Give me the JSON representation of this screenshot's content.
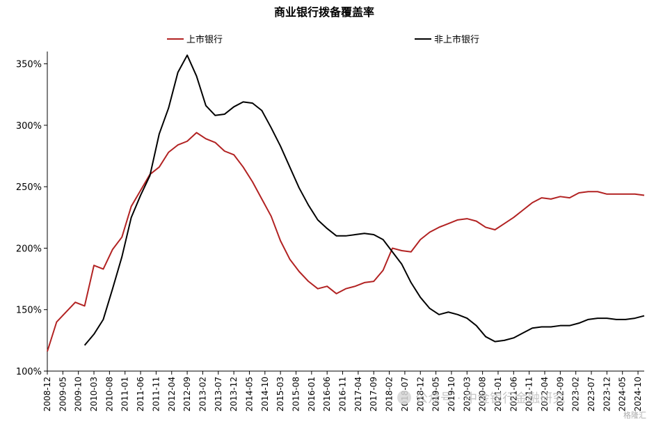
{
  "chart_data": {
    "type": "line",
    "title": "商业银行拨备覆盖率",
    "xlabel": "",
    "ylabel": "",
    "ylim": [
      100,
      360
    ],
    "yticks": [
      "100%",
      "150%",
      "200%",
      "250%",
      "300%",
      "350%"
    ],
    "yticks_values": [
      100,
      150,
      200,
      250,
      300,
      350
    ],
    "xtick_labels": [
      "2008-12",
      "2009-05",
      "2009-10",
      "2010-03",
      "2010-08",
      "2011-01",
      "2011-06",
      "2011-11",
      "2012-04",
      "2012-09",
      "2013-02",
      "2013-07",
      "2013-12",
      "2014-05",
      "2014-10",
      "2015-03",
      "2015-08",
      "2016-01",
      "2016-06",
      "2016-11",
      "2017-04",
      "2017-09",
      "2018-02",
      "2018-07",
      "2018-12",
      "2019-05",
      "2019-10",
      "2020-03",
      "2020-08",
      "2021-01",
      "2021-06",
      "2021-11",
      "2022-04",
      "2022-09",
      "2023-02",
      "2023-07",
      "2023-12",
      "2024-05",
      "2024-10"
    ],
    "legend_position": "top",
    "grid": false,
    "x": [
      "2008-12",
      "2009-03",
      "2009-06",
      "2009-09",
      "2009-12",
      "2010-03",
      "2010-06",
      "2010-09",
      "2010-12",
      "2011-03",
      "2011-06",
      "2011-09",
      "2011-12",
      "2012-03",
      "2012-06",
      "2012-09",
      "2012-12",
      "2013-03",
      "2013-06",
      "2013-09",
      "2013-12",
      "2014-03",
      "2014-06",
      "2014-09",
      "2014-12",
      "2015-03",
      "2015-06",
      "2015-09",
      "2015-12",
      "2016-03",
      "2016-06",
      "2016-09",
      "2016-12",
      "2017-03",
      "2017-06",
      "2017-09",
      "2017-12",
      "2018-03",
      "2018-06",
      "2018-09",
      "2018-12",
      "2019-03",
      "2019-06",
      "2019-09",
      "2019-12",
      "2020-03",
      "2020-06",
      "2020-09",
      "2020-12",
      "2021-03",
      "2021-06",
      "2021-09",
      "2021-12",
      "2022-03",
      "2022-06",
      "2022-09",
      "2022-12",
      "2023-03",
      "2023-06",
      "2023-09",
      "2023-12",
      "2024-03",
      "2024-06",
      "2024-09",
      "2024-12"
    ],
    "series": [
      {
        "name": "上市银行",
        "color": "#b22222",
        "values": [
          116,
          140,
          148,
          156,
          153,
          186,
          183,
          199,
          209,
          234,
          247,
          260,
          266,
          278,
          284,
          287,
          294,
          289,
          286,
          279,
          276,
          266,
          254,
          240,
          226,
          206,
          191,
          181,
          173,
          167,
          169,
          163,
          167,
          169,
          172,
          173,
          182,
          200,
          198,
          197,
          207,
          213,
          217,
          220,
          223,
          224,
          222,
          217,
          215,
          220,
          225,
          231,
          237,
          241,
          240,
          242,
          241,
          245,
          246,
          246,
          244,
          244,
          244,
          244,
          243
        ]
      },
      {
        "name": "非上市银行",
        "color": "#000000",
        "values": [
          null,
          null,
          null,
          null,
          121,
          130,
          142,
          167,
          193,
          225,
          243,
          259,
          293,
          314,
          343,
          357,
          340,
          316,
          308,
          309,
          315,
          319,
          318,
          312,
          298,
          283,
          266,
          249,
          235,
          223,
          216,
          210,
          210,
          211,
          212,
          211,
          207,
          197,
          187,
          172,
          160,
          151,
          146,
          148,
          146,
          143,
          137,
          128,
          124,
          125,
          127,
          131,
          135,
          136,
          136,
          137,
          137,
          139,
          142,
          143,
          143,
          142,
          142,
          143,
          145
        ]
      }
    ]
  },
  "watermark": {
    "text": "公众号 · 中金银行金融研究",
    "corner": "格隆汇"
  }
}
